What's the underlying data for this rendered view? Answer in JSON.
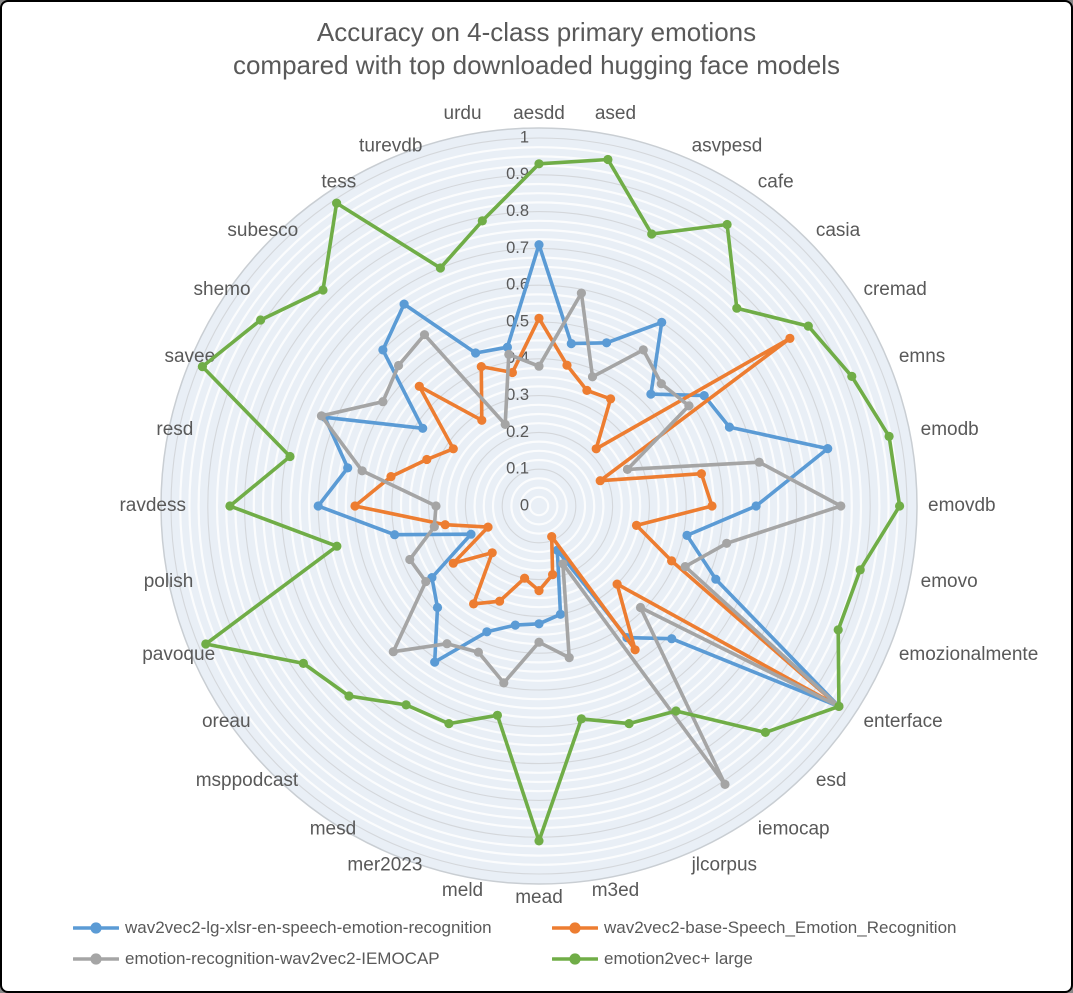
{
  "title": {
    "line1": "Accuracy on 4-class primary emotions",
    "line2": "compared with top downloaded hugging face models"
  },
  "chart_data": {
    "type": "radar",
    "title": "Accuracy on 4-class primary emotions compared with top downloaded hugging face models",
    "grid": true,
    "legend_position": "bottom",
    "radial_axis": {
      "min": 0,
      "max": 1,
      "tick_step": 0.1,
      "tick_labels": [
        "1",
        "0.9",
        "0.8",
        "0.7",
        "0.6",
        "0.5",
        "0.4",
        "0.3",
        "0.2",
        "0.1",
        "0"
      ]
    },
    "categories": [
      "aesdd",
      "ased",
      "asvpesd",
      "cafe",
      "casia",
      "cremad",
      "emns",
      "emodb",
      "emovdb",
      "emovo",
      "emozionalmente",
      "enterface",
      "esd",
      "iemocap",
      "jlcorpus",
      "m3ed",
      "mead",
      "meld",
      "mer2023",
      "mesd",
      "msppodcast",
      "oreau",
      "pavoque",
      "polish",
      "ravdess",
      "resd",
      "savee",
      "shemo",
      "subesco",
      "tess",
      "turevdb",
      "urdu"
    ],
    "series": [
      {
        "name": "wav2vec2-lg-xlsr-en-speech-emotion-recognition",
        "color": "#5B9BD5",
        "values": [
          0.71,
          0.45,
          0.48,
          0.6,
          0.43,
          0.54,
          0.56,
          0.8,
          0.59,
          0.41,
          0.52,
          0.98,
          0.51,
          0.43,
          0.13,
          0.3,
          0.32,
          0.33,
          0.37,
          0.51,
          0.39,
          0.35,
          0.2,
          0.4,
          0.6,
          0.53,
          0.63,
          0.38,
          0.6,
          0.66,
          0.45,
          0.44
        ]
      },
      {
        "name": "wav2vec2-base-Speech_Emotion_Recognition",
        "color": "#ED7D31",
        "values": [
          0.51,
          0.39,
          0.34,
          0.35,
          0.22,
          0.82,
          0.18,
          0.45,
          0.47,
          0.27,
          0.39,
          0.98,
          0.3,
          0.47,
          0.09,
          0.19,
          0.23,
          0.2,
          0.28,
          0.32,
          0.18,
          0.28,
          0.15,
          0.26,
          0.5,
          0.41,
          0.33,
          0.28,
          0.46,
          0.28,
          0.41,
          0.37
        ]
      },
      {
        "name": "emotion-recognition-wav2vec2-IEMOCAP",
        "color": "#A5A5A5",
        "values": [
          0.38,
          0.59,
          0.38,
          0.51,
          0.47,
          0.49,
          0.26,
          0.61,
          0.82,
          0.52,
          0.43,
          0.98,
          0.39,
          0.91,
          0.17,
          0.42,
          0.37,
          0.49,
          0.43,
          0.45,
          0.56,
          0.37,
          0.38,
          0.29,
          0.28,
          0.49,
          0.64,
          0.51,
          0.54,
          0.56,
          0.24,
          0.42
        ]
      },
      {
        "name": "emotion2vec+ large",
        "color": "#70AD47",
        "values": [
          0.93,
          0.96,
          0.8,
          0.92,
          0.76,
          0.88,
          0.92,
          0.97,
          0.98,
          0.89,
          0.88,
          0.98,
          0.87,
          0.67,
          0.64,
          0.59,
          0.91,
          0.58,
          0.64,
          0.65,
          0.73,
          0.77,
          0.98,
          0.56,
          0.84,
          0.69,
          0.99,
          0.91,
          0.83,
          0.99,
          0.7,
          0.79
        ]
      }
    ],
    "style": {
      "plot_bg_fill": "#E9EFF6",
      "ring_white": "#FFFFFF",
      "ring_major": "#D4D7DB",
      "outer_edge": "#C9CED3",
      "text_color": "#595959"
    }
  }
}
